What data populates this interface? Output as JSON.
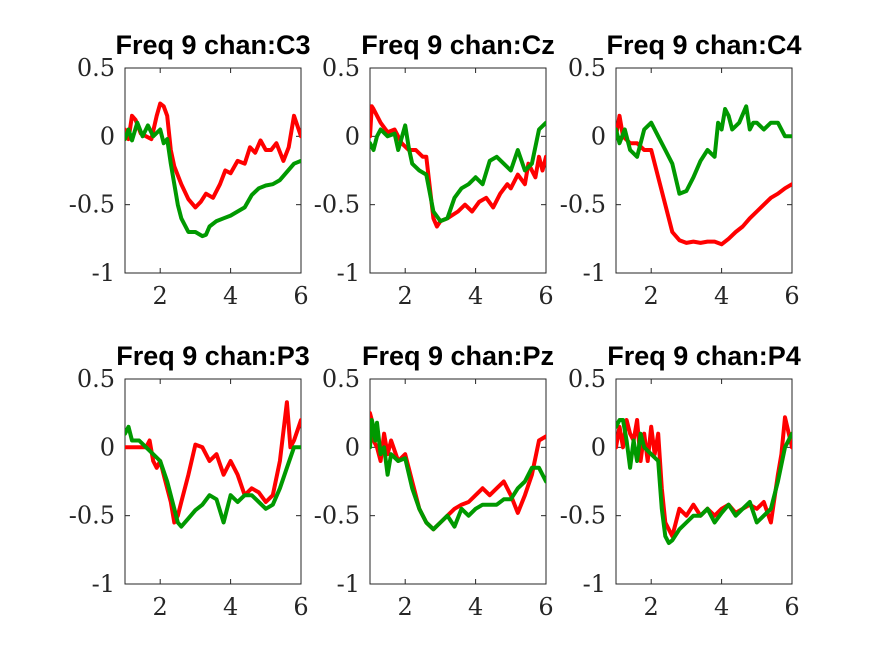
{
  "chart_data": [
    {
      "type": "line",
      "title": "Freq 9 chan:C3",
      "xlim": [
        1,
        6
      ],
      "ylim": [
        -1,
        0.5
      ],
      "xticks": [
        2,
        4,
        6
      ],
      "xtick_labels": [
        "2",
        "4",
        "6"
      ],
      "yticks": [
        -1,
        -0.5,
        0,
        0.5
      ],
      "ytick_labels": [
        "-1",
        "-0.5",
        "0",
        "0.5"
      ],
      "grid": false,
      "series": [
        {
          "color": "#ff0000",
          "x": [
            1,
            1.1,
            1.2,
            1.3,
            1.45,
            1.6,
            1.75,
            1.9,
            2.0,
            2.1,
            2.2,
            2.3,
            2.4,
            2.6,
            2.8,
            3.0,
            3.15,
            3.3,
            3.5,
            3.7,
            3.85,
            4.0,
            4.2,
            4.4,
            4.55,
            4.7,
            4.85,
            5.0,
            5.15,
            5.3,
            5.5,
            5.65,
            5.8,
            6.0
          ],
          "y": [
            0.05,
            -0.02,
            0.15,
            0.12,
            0.02,
            0.0,
            -0.02,
            0.15,
            0.24,
            0.22,
            0.15,
            -0.1,
            -0.22,
            -0.35,
            -0.46,
            -0.52,
            -0.48,
            -0.42,
            -0.45,
            -0.35,
            -0.25,
            -0.27,
            -0.18,
            -0.2,
            -0.08,
            -0.12,
            -0.03,
            -0.1,
            -0.1,
            -0.05,
            -0.18,
            -0.08,
            0.15,
            0.0
          ]
        },
        {
          "color": "#009900",
          "x": [
            1,
            1.1,
            1.2,
            1.35,
            1.5,
            1.65,
            1.8,
            2.0,
            2.1,
            2.2,
            2.3,
            2.4,
            2.5,
            2.6,
            2.8,
            3.0,
            3.2,
            3.3,
            3.4,
            3.6,
            3.8,
            4.0,
            4.2,
            4.4,
            4.6,
            4.8,
            5.0,
            5.2,
            5.4,
            5.6,
            5.8,
            6.0
          ],
          "y": [
            -0.02,
            0.05,
            -0.03,
            0.1,
            0.0,
            0.08,
            0.0,
            0.05,
            -0.05,
            -0.02,
            -0.2,
            -0.35,
            -0.5,
            -0.6,
            -0.7,
            -0.7,
            -0.73,
            -0.72,
            -0.66,
            -0.62,
            -0.6,
            -0.58,
            -0.55,
            -0.52,
            -0.43,
            -0.38,
            -0.36,
            -0.35,
            -0.32,
            -0.26,
            -0.2,
            -0.18
          ]
        }
      ]
    },
    {
      "type": "line",
      "title": "Freq 9 chan:Cz",
      "xlim": [
        1,
        6
      ],
      "ylim": [
        -1,
        0.5
      ],
      "xticks": [
        2,
        4,
        6
      ],
      "xtick_labels": [
        "2",
        "4",
        "6"
      ],
      "yticks": [
        -1,
        -0.5,
        0,
        0.5
      ],
      "ytick_labels": [
        "-1",
        "-0.5",
        "0",
        "0.5"
      ],
      "grid": false,
      "series": [
        {
          "color": "#ff0000",
          "x": [
            1,
            1.05,
            1.1,
            1.3,
            1.5,
            1.7,
            1.9,
            2.1,
            2.3,
            2.5,
            2.6,
            2.8,
            2.9,
            3.0,
            3.2,
            3.5,
            3.7,
            3.9,
            4.1,
            4.3,
            4.5,
            4.7,
            4.9,
            5.0,
            5.2,
            5.4,
            5.5,
            5.7,
            5.8,
            5.9,
            6.0
          ],
          "y": [
            0.0,
            0.22,
            0.2,
            0.1,
            0.03,
            0.05,
            -0.05,
            -0.1,
            -0.1,
            -0.15,
            -0.15,
            -0.6,
            -0.66,
            -0.62,
            -0.6,
            -0.55,
            -0.5,
            -0.55,
            -0.48,
            -0.45,
            -0.52,
            -0.42,
            -0.35,
            -0.38,
            -0.28,
            -0.35,
            -0.2,
            -0.3,
            -0.15,
            -0.25,
            -0.15
          ]
        },
        {
          "color": "#009900",
          "x": [
            1,
            1.1,
            1.2,
            1.3,
            1.5,
            1.7,
            1.8,
            2.0,
            2.1,
            2.2,
            2.4,
            2.6,
            2.8,
            3.0,
            3.2,
            3.4,
            3.6,
            3.8,
            4.0,
            4.2,
            4.4,
            4.6,
            4.8,
            5.0,
            5.2,
            5.4,
            5.6,
            5.8,
            6.0
          ],
          "y": [
            -0.05,
            -0.1,
            0.0,
            0.05,
            0.0,
            0.02,
            -0.1,
            0.08,
            -0.08,
            -0.2,
            -0.25,
            -0.28,
            -0.55,
            -0.62,
            -0.6,
            -0.45,
            -0.38,
            -0.35,
            -0.3,
            -0.35,
            -0.18,
            -0.15,
            -0.2,
            -0.25,
            -0.1,
            -0.25,
            -0.2,
            0.05,
            0.1
          ]
        }
      ]
    },
    {
      "type": "line",
      "title": "Freq 9 chan:C4",
      "xlim": [
        1,
        6
      ],
      "ylim": [
        -1,
        0.5
      ],
      "xticks": [
        2,
        4,
        6
      ],
      "xtick_labels": [
        "2",
        "4",
        "6"
      ],
      "yticks": [
        -1,
        -0.5,
        0,
        0.5
      ],
      "ytick_labels": [
        "-1",
        "-0.5",
        "0",
        "0.5"
      ],
      "grid": false,
      "series": [
        {
          "color": "#ff0000",
          "x": [
            1,
            1.1,
            1.2,
            1.4,
            1.6,
            1.8,
            2.0,
            2.2,
            2.4,
            2.6,
            2.8,
            3.0,
            3.2,
            3.4,
            3.6,
            3.8,
            4.0,
            4.2,
            4.4,
            4.6,
            4.8,
            5.0,
            5.2,
            5.4,
            5.6,
            5.8,
            6.0
          ],
          "y": [
            0.0,
            0.15,
            0.0,
            -0.05,
            -0.05,
            -0.1,
            -0.1,
            -0.3,
            -0.5,
            -0.7,
            -0.76,
            -0.78,
            -0.77,
            -0.78,
            -0.77,
            -0.77,
            -0.79,
            -0.75,
            -0.7,
            -0.66,
            -0.6,
            -0.55,
            -0.5,
            -0.45,
            -0.42,
            -0.38,
            -0.35
          ]
        },
        {
          "color": "#009900",
          "x": [
            1,
            1.1,
            1.25,
            1.4,
            1.6,
            1.8,
            2.0,
            2.2,
            2.4,
            2.6,
            2.8,
            3.0,
            3.2,
            3.4,
            3.6,
            3.8,
            3.9,
            4.0,
            4.1,
            4.2,
            4.3,
            4.5,
            4.7,
            4.8,
            4.9,
            5.0,
            5.2,
            5.4,
            5.6,
            5.8,
            6.0
          ],
          "y": [
            0.05,
            -0.05,
            0.05,
            -0.1,
            -0.15,
            0.05,
            0.1,
            0.0,
            -0.1,
            -0.2,
            -0.42,
            -0.4,
            -0.3,
            -0.18,
            -0.1,
            -0.15,
            0.1,
            0.05,
            0.2,
            0.15,
            0.05,
            0.1,
            0.22,
            0.05,
            0.1,
            0.1,
            0.05,
            0.1,
            0.1,
            0.0,
            0.0
          ]
        }
      ]
    },
    {
      "type": "line",
      "title": "Freq 9 chan:P3",
      "xlim": [
        1,
        6
      ],
      "ylim": [
        -1,
        0.5
      ],
      "xticks": [
        2,
        4,
        6
      ],
      "xtick_labels": [
        "2",
        "4",
        "6"
      ],
      "yticks": [
        -1,
        -0.5,
        0,
        0.5
      ],
      "ytick_labels": [
        "-1",
        "-0.5",
        "0",
        "0.5"
      ],
      "grid": false,
      "series": [
        {
          "color": "#ff0000",
          "x": [
            1,
            1.2,
            1.4,
            1.6,
            1.7,
            1.8,
            1.9,
            2.0,
            2.1,
            2.2,
            2.3,
            2.4,
            2.5,
            2.6,
            2.8,
            3.0,
            3.2,
            3.4,
            3.6,
            3.8,
            4.0,
            4.2,
            4.4,
            4.6,
            4.8,
            5.0,
            5.2,
            5.4,
            5.6,
            5.7,
            5.8,
            6.0
          ],
          "y": [
            0.0,
            0.0,
            0.0,
            0.0,
            0.05,
            -0.1,
            -0.15,
            -0.1,
            -0.2,
            -0.3,
            -0.4,
            -0.55,
            -0.5,
            -0.4,
            -0.2,
            0.02,
            0.0,
            -0.1,
            -0.05,
            -0.2,
            -0.1,
            -0.2,
            -0.35,
            -0.3,
            -0.33,
            -0.4,
            -0.35,
            -0.1,
            0.33,
            0.0,
            0.05,
            0.2
          ]
        },
        {
          "color": "#009900",
          "x": [
            1,
            1.1,
            1.2,
            1.4,
            1.6,
            1.8,
            2.0,
            2.2,
            2.4,
            2.5,
            2.6,
            2.8,
            3.0,
            3.2,
            3.4,
            3.6,
            3.8,
            4.0,
            4.2,
            4.4,
            4.6,
            4.8,
            5.0,
            5.2,
            5.4,
            5.6,
            5.8,
            6.0
          ],
          "y": [
            0.1,
            0.15,
            0.05,
            0.05,
            0.0,
            -0.05,
            -0.1,
            -0.25,
            -0.45,
            -0.55,
            -0.58,
            -0.52,
            -0.46,
            -0.42,
            -0.35,
            -0.38,
            -0.55,
            -0.35,
            -0.4,
            -0.35,
            -0.35,
            -0.4,
            -0.45,
            -0.42,
            -0.3,
            -0.15,
            0.0,
            0.0
          ]
        }
      ]
    },
    {
      "type": "line",
      "title": "Freq 9 chan:Pz",
      "xlim": [
        1,
        6
      ],
      "ylim": [
        -1,
        0.5
      ],
      "xticks": [
        2,
        4,
        6
      ],
      "xtick_labels": [
        "2",
        "4",
        "6"
      ],
      "yticks": [
        -1,
        -0.5,
        0,
        0.5
      ],
      "ytick_labels": [
        "-1",
        "-0.5",
        "0",
        "0.5"
      ],
      "grid": false,
      "series": [
        {
          "color": "#ff0000",
          "x": [
            1,
            1.05,
            1.1,
            1.2,
            1.3,
            1.4,
            1.5,
            1.6,
            1.8,
            2.0,
            2.2,
            2.4,
            2.6,
            2.8,
            3.0,
            3.2,
            3.4,
            3.6,
            3.8,
            4.0,
            4.2,
            4.4,
            4.6,
            4.8,
            5.0,
            5.2,
            5.4,
            5.6,
            5.8,
            6.0
          ],
          "y": [
            0.25,
            0.2,
            0.05,
            0.0,
            -0.1,
            0.1,
            -0.05,
            0.05,
            -0.1,
            -0.05,
            -0.25,
            -0.45,
            -0.55,
            -0.6,
            -0.55,
            -0.5,
            -0.45,
            -0.42,
            -0.4,
            -0.35,
            -0.3,
            -0.35,
            -0.3,
            -0.25,
            -0.35,
            -0.48,
            -0.35,
            -0.2,
            0.05,
            0.08
          ]
        },
        {
          "color": "#009900",
          "x": [
            1,
            1.05,
            1.1,
            1.15,
            1.2,
            1.3,
            1.4,
            1.5,
            1.6,
            1.8,
            2.0,
            2.2,
            2.4,
            2.6,
            2.8,
            3.0,
            3.2,
            3.4,
            3.6,
            3.8,
            4.0,
            4.2,
            4.4,
            4.6,
            4.8,
            5.0,
            5.2,
            5.4,
            5.6,
            5.8,
            6.0
          ],
          "y": [
            0.0,
            0.2,
            0.15,
            0.05,
            0.18,
            -0.05,
            0.0,
            -0.2,
            -0.05,
            -0.1,
            -0.08,
            -0.3,
            -0.45,
            -0.55,
            -0.6,
            -0.55,
            -0.5,
            -0.58,
            -0.45,
            -0.5,
            -0.45,
            -0.42,
            -0.42,
            -0.42,
            -0.38,
            -0.38,
            -0.3,
            -0.25,
            -0.15,
            -0.15,
            -0.25
          ]
        }
      ]
    },
    {
      "type": "line",
      "title": "Freq 9 chan:P4",
      "xlim": [
        1,
        6
      ],
      "ylim": [
        -1,
        0.5
      ],
      "xticks": [
        2,
        4,
        6
      ],
      "xtick_labels": [
        "2",
        "4",
        "6"
      ],
      "yticks": [
        -1,
        -0.5,
        0,
        0.5
      ],
      "ytick_labels": [
        "-1",
        "-0.5",
        "0",
        "0.5"
      ],
      "grid": false,
      "series": [
        {
          "color": "#ff0000",
          "x": [
            1,
            1.1,
            1.2,
            1.3,
            1.4,
            1.5,
            1.6,
            1.7,
            1.8,
            1.9,
            2.0,
            2.1,
            2.2,
            2.3,
            2.4,
            2.6,
            2.8,
            3.0,
            3.2,
            3.4,
            3.6,
            3.8,
            4.0,
            4.2,
            4.4,
            4.6,
            4.8,
            5.0,
            5.2,
            5.4,
            5.6,
            5.7,
            5.8,
            6.0
          ],
          "y": [
            0.0,
            0.15,
            0.0,
            0.2,
            0.1,
            0.05,
            0.2,
            -0.1,
            0.1,
            -0.1,
            0.15,
            -0.05,
            0.1,
            -0.3,
            -0.55,
            -0.65,
            -0.45,
            -0.5,
            -0.42,
            -0.5,
            -0.45,
            -0.5,
            -0.45,
            -0.42,
            -0.48,
            -0.45,
            -0.42,
            -0.45,
            -0.4,
            -0.55,
            -0.2,
            -0.05,
            0.22,
            0.0
          ]
        },
        {
          "color": "#009900",
          "x": [
            1,
            1.1,
            1.2,
            1.3,
            1.4,
            1.5,
            1.6,
            1.7,
            1.8,
            2.0,
            2.2,
            2.3,
            2.4,
            2.5,
            2.6,
            2.8,
            3.0,
            3.2,
            3.4,
            3.6,
            3.8,
            4.0,
            4.2,
            4.4,
            4.6,
            4.8,
            5.0,
            5.2,
            5.4,
            5.6,
            5.8,
            6.0
          ],
          "y": [
            0.15,
            0.2,
            0.2,
            0.05,
            -0.15,
            0.05,
            -0.1,
            0.1,
            0.0,
            -0.05,
            -0.1,
            -0.45,
            -0.65,
            -0.7,
            -0.68,
            -0.6,
            -0.55,
            -0.5,
            -0.5,
            -0.45,
            -0.55,
            -0.48,
            -0.42,
            -0.5,
            -0.45,
            -0.4,
            -0.55,
            -0.5,
            -0.45,
            -0.25,
            0.0,
            0.1
          ]
        }
      ]
    }
  ]
}
